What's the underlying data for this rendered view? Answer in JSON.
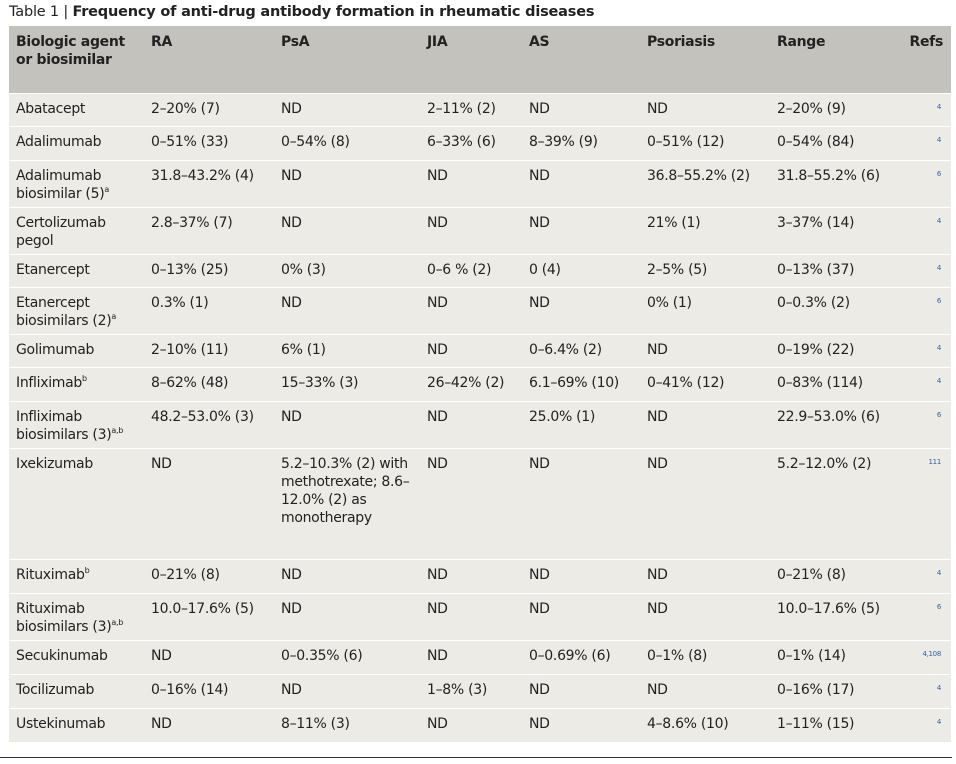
{
  "caption": {
    "number": "Table 1 | ",
    "title": "Frequency of anti-drug antibody formation in rheumatic diseases"
  },
  "headers": [
    "Biologic agent or biosimilar",
    "RA",
    "PsA",
    "JIA",
    "AS",
    "Psoriasis",
    "Range",
    "Refs"
  ],
  "rows": [
    {
      "agent": "Abatacept",
      "sup": "",
      "ra": "2–20% (7)",
      "psa": "ND",
      "jia": "2–11% (2)",
      "as": "ND",
      "psoriasis": "ND",
      "range": "2–20% (9)",
      "refs": "4"
    },
    {
      "agent": "Adalimumab",
      "sup": "",
      "ra": "0–51% (33)",
      "psa": "0–54% (8)",
      "jia": "6–33% (6)",
      "as": "8–39% (9)",
      "psoriasis": "0–51% (12)",
      "range": "0–54% (84)",
      "refs": "4"
    },
    {
      "agent": "Adalimumab biosimilar (5)",
      "sup": "a",
      "ra": "31.8–43.2% (4)",
      "psa": "ND",
      "jia": "ND",
      "as": "ND",
      "psoriasis": "36.8–55.2% (2)",
      "range": "31.8–55.2% (6)",
      "refs": "6"
    },
    {
      "agent": "Certolizumab pegol",
      "sup": "",
      "ra": "2.8–37% (7)",
      "psa": "ND",
      "jia": "ND",
      "as": "ND",
      "psoriasis": "21% (1)",
      "range": "3–37% (14)",
      "refs": "4"
    },
    {
      "agent": "Etanercept",
      "sup": "",
      "ra": "0–13% (25)",
      "psa": "0% (3)",
      "jia": "0–6 % (2)",
      "as": "0 (4)",
      "psoriasis": "2–5% (5)",
      "range": "0–13% (37)",
      "refs": "4"
    },
    {
      "agent": "Etanercept biosimilars (2)",
      "sup": "a",
      "ra": "0.3% (1)",
      "psa": "ND",
      "jia": "ND",
      "as": "ND",
      "psoriasis": "0% (1)",
      "range": "0–0.3% (2)",
      "refs": "6"
    },
    {
      "agent": "Golimumab",
      "sup": "",
      "ra": "2–10% (11)",
      "psa": "6% (1)",
      "jia": "ND",
      "as": "0–6.4% (2)",
      "psoriasis": "ND",
      "range": "0–19% (22)",
      "refs": "4"
    },
    {
      "agent": "Infliximab",
      "sup": "b",
      "ra": "8–62% (48)",
      "psa": "15–33% (3)",
      "jia": "26–42% (2)",
      "as": "6.1–69% (10)",
      "psoriasis": "0–41% (12)",
      "range": "0–83% (114)",
      "refs": "4"
    },
    {
      "agent": "Infliximab biosimilars (3)",
      "sup": "a,b",
      "ra": "48.2–53.0% (3)",
      "psa": "ND",
      "jia": "ND",
      "as": "25.0% (1)",
      "psoriasis": "ND",
      "range": "22.9–53.0% (6)",
      "refs": "6"
    },
    {
      "agent": "Ixekizumab",
      "sup": "",
      "ra": "ND",
      "psa": "5.2–10.3% (2) with methotrexate; 8.6–12.0% (2) as monotherapy",
      "jia": "ND",
      "as": "ND",
      "psoriasis": "ND",
      "range": "5.2–12.0% (2)",
      "refs": "111"
    },
    {
      "agent": "Rituximab",
      "sup": "b",
      "ra": "0–21% (8)",
      "psa": "ND",
      "jia": "ND",
      "as": "ND",
      "psoriasis": "ND",
      "range": "0–21% (8)",
      "refs": "4"
    },
    {
      "agent": "Rituximab biosimilars (3)",
      "sup": "a,b",
      "ra": "10.0–17.6% (5)",
      "psa": "ND",
      "jia": "ND",
      "as": "ND",
      "psoriasis": "ND",
      "range": "10.0–17.6% (5)",
      "refs": "6"
    },
    {
      "agent": "Secukinumab",
      "sup": "",
      "ra": "ND",
      "psa": "0–0.35% (6)",
      "jia": "ND",
      "as": "0–0.69% (6)",
      "psoriasis": "0–1% (8)",
      "range": "0–1% (14)",
      "refs": "4,108"
    },
    {
      "agent": "Tocilizumab",
      "sup": "",
      "ra": "0–16% (14)",
      "psa": "ND",
      "jia": "1–8% (3)",
      "as": "ND",
      "psoriasis": "ND",
      "range": "0–16% (17)",
      "refs": "4"
    },
    {
      "agent": "Ustekinumab",
      "sup": "",
      "ra": "ND",
      "psa": "8–11% (3)",
      "jia": "ND",
      "as": "ND",
      "psoriasis": "4–8.6% (10)",
      "range": "1–11% (15)",
      "refs": "4"
    }
  ]
}
